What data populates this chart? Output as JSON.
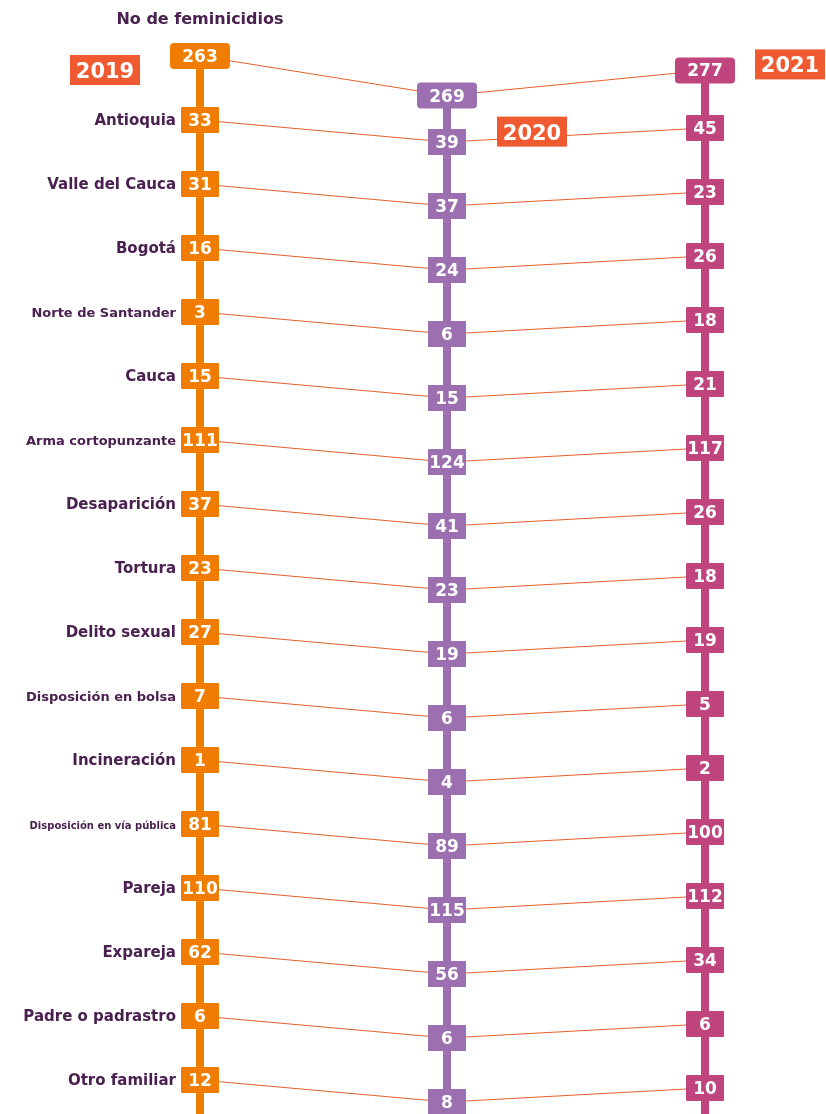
{
  "chart_data": {
    "type": "other",
    "data_labels": true,
    "categories": [
      "No de feminicidios",
      "Antioquia",
      "Valle del Cauca",
      "Bogotá",
      "Norte de Santander",
      "Cauca",
      "Arma cortopunzante",
      "Desaparición",
      "Tortura",
      "Delito sexual",
      "Disposición en bolsa",
      "Incineración",
      "Disposición en vía pública",
      "Pareja",
      "Expareja",
      "Padre o padrastro",
      "Otro familiar"
    ],
    "series": [
      {
        "name": "2019",
        "color": "#f07d00",
        "values": [
          263,
          33,
          31,
          16,
          3,
          15,
          111,
          37,
          23,
          27,
          7,
          1,
          81,
          110,
          62,
          6,
          12
        ]
      },
      {
        "name": "2020",
        "color": "#9b6fb0",
        "values": [
          269,
          39,
          37,
          24,
          6,
          15,
          124,
          41,
          23,
          19,
          6,
          4,
          89,
          115,
          56,
          6,
          8
        ]
      },
      {
        "name": "2021",
        "color": "#c0457f",
        "values": [
          277,
          45,
          23,
          26,
          18,
          21,
          117,
          26,
          18,
          19,
          5,
          2,
          100,
          112,
          34,
          6,
          10
        ]
      }
    ]
  }
}
